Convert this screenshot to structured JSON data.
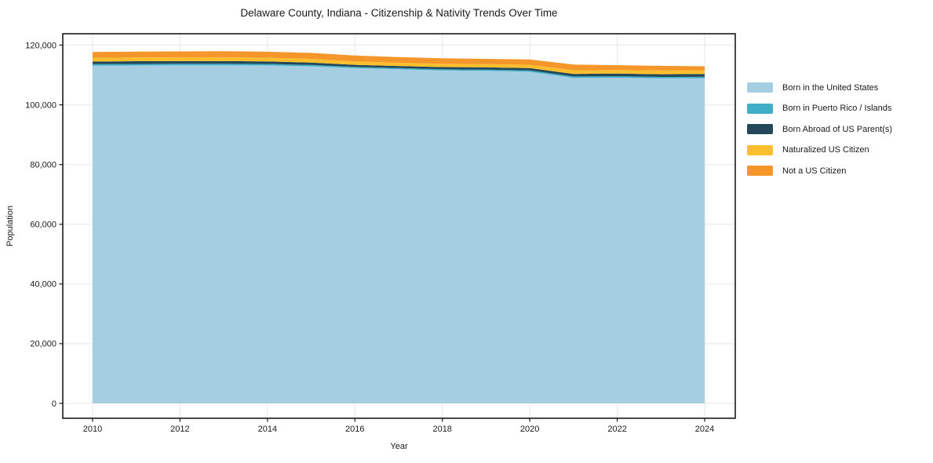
{
  "page": {
    "background": "#ffffff",
    "text_color": "#1a1a1a",
    "grid_color": "#e7e7e7",
    "border_color": "#1a1a1a"
  },
  "chart_data": {
    "type": "area",
    "stacked": true,
    "title": "Delaware County, Indiana - Citizenship & Nativity Trends Over Time",
    "xlabel": "Year",
    "ylabel": "Population",
    "grid": true,
    "legend_position": "right-outside",
    "x": [
      2010,
      2011,
      2012,
      2013,
      2014,
      2015,
      2016,
      2017,
      2018,
      2019,
      2020,
      2021,
      2022,
      2023,
      2024
    ],
    "series": [
      {
        "key": "born-us",
        "name": "Born in the United States",
        "color": "#A5CEE3",
        "values": [
          113100,
          113200,
          113250,
          113250,
          113200,
          112900,
          112300,
          111900,
          111500,
          111400,
          111100,
          109000,
          109100,
          108900,
          108900
        ]
      },
      {
        "key": "puerto-rico",
        "name": "Born in Puerto Rico / Islands",
        "color": "#3FAEC6",
        "values": [
          500,
          500,
          500,
          500,
          500,
          450,
          400,
          400,
          400,
          400,
          400,
          500,
          480,
          460,
          500
        ]
      },
      {
        "key": "born-abroad",
        "name": "Born Abroad of US Parent(s)",
        "color": "#23485A",
        "values": [
          900,
          900,
          900,
          900,
          850,
          800,
          700,
          700,
          750,
          750,
          800,
          850,
          900,
          900,
          900
        ]
      },
      {
        "key": "naturalized",
        "name": "Naturalized US Citizen",
        "color": "#FBBF2D",
        "values": [
          1200,
          1250,
          1250,
          1250,
          1250,
          1250,
          1150,
          1100,
          1100,
          1050,
          1100,
          1250,
          1200,
          1250,
          1300
        ]
      },
      {
        "key": "not-citizen",
        "name": "Not a US Citizen",
        "color": "#F5962B",
        "values": [
          2000,
          2000,
          2000,
          2050,
          2000,
          2000,
          1950,
          1900,
          1850,
          1800,
          1800,
          1900,
          1600,
          1550,
          1300
        ]
      }
    ],
    "xticks": [
      2010,
      2012,
      2014,
      2016,
      2018,
      2020,
      2022,
      2024
    ],
    "yticks": [
      0,
      20000,
      40000,
      60000,
      80000,
      100000,
      120000
    ],
    "ytick_labels": [
      "0",
      "20,000",
      "40,000",
      "60,000",
      "80,000",
      "100,000",
      "120,000"
    ],
    "xlim": [
      2009.3,
      2024.7
    ],
    "ylim": [
      -5000,
      123800
    ]
  }
}
